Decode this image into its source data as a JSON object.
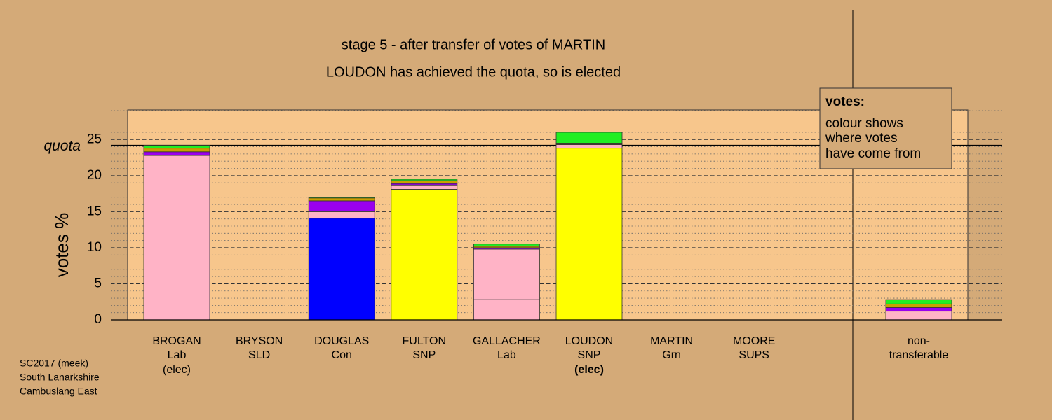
{
  "chart_data": {
    "type": "stacked_bar",
    "title": "stage 5 - after transfer of votes of MARTIN",
    "subtitle": "LOUDON has achieved the quota, so is elected",
    "y_label": "votes %",
    "quota": 24.2,
    "quota_label": "quota",
    "categories": [
      "BROGAN",
      "BRYSON",
      "DOUGLAS",
      "FULTON",
      "GALLACHER",
      "LOUDON",
      "MARTIN",
      "MOORE",
      "non-"
    ],
    "parties": [
      "Lab",
      "SLD",
      "Con",
      "SNP",
      "Lab",
      "SNP",
      "Grn",
      "SUPS",
      "transferable"
    ],
    "status": [
      "(elec)",
      null,
      null,
      null,
      null,
      "(elec)",
      null,
      null,
      null
    ],
    "status_bold": [
      false,
      false,
      false,
      false,
      false,
      true,
      false,
      false,
      false
    ],
    "series": [
      {
        "color": "#ffb3c6",
        "values": [
          22.8,
          0,
          0,
          0,
          2.8,
          0,
          0,
          0,
          0
        ]
      },
      {
        "color": "#0000ff",
        "values": [
          0,
          0,
          14.1,
          0,
          0,
          0,
          0,
          0,
          0
        ]
      },
      {
        "color": "#ffff00",
        "values": [
          0,
          0,
          0,
          18.1,
          0,
          23.8,
          0,
          0,
          0
        ]
      },
      {
        "color": "#ffb3c6",
        "values": [
          0,
          0,
          0.9,
          0.6,
          7.0,
          0.5,
          0,
          0,
          1.2
        ]
      },
      {
        "color": "#9a00ee",
        "values": [
          0.5,
          0,
          1.5,
          0.2,
          0.2,
          0,
          0,
          0,
          0.5
        ]
      },
      {
        "color": "#c8a000",
        "values": [
          0.5,
          0,
          0.4,
          0.4,
          0.2,
          0.2,
          0,
          0,
          0.5
        ]
      },
      {
        "color": "#22ee22",
        "values": [
          0.4,
          0,
          0.1,
          0.2,
          0.3,
          1.5,
          0,
          0,
          0.6
        ]
      }
    ],
    "ylim": [
      0,
      29.1
    ],
    "yticks": [
      0,
      5,
      10,
      15,
      20,
      25
    ],
    "minor_step": 1,
    "grid": true,
    "note": {
      "title": "votes:",
      "lines": [
        "colour shows",
        "where votes",
        "have come from"
      ]
    },
    "footer": [
      "SC2017 (meek)",
      "South Lanarkshire",
      "Cambuslang East"
    ]
  }
}
